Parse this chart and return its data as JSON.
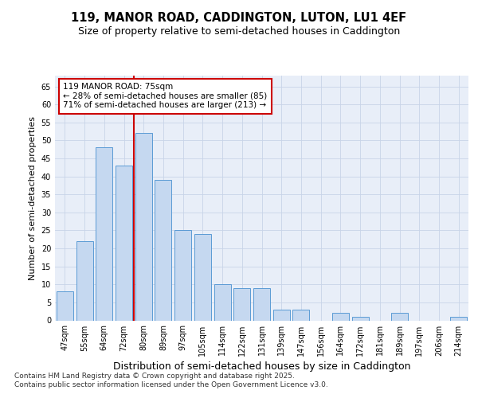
{
  "title_line1": "119, MANOR ROAD, CADDINGTON, LUTON, LU1 4EF",
  "title_line2": "Size of property relative to semi-detached houses in Caddington",
  "xlabel": "Distribution of semi-detached houses by size in Caddington",
  "ylabel": "Number of semi-detached properties",
  "categories": [
    "47sqm",
    "55sqm",
    "64sqm",
    "72sqm",
    "80sqm",
    "89sqm",
    "97sqm",
    "105sqm",
    "114sqm",
    "122sqm",
    "131sqm",
    "139sqm",
    "147sqm",
    "156sqm",
    "164sqm",
    "172sqm",
    "181sqm",
    "189sqm",
    "197sqm",
    "206sqm",
    "214sqm"
  ],
  "values": [
    8,
    22,
    48,
    43,
    52,
    39,
    25,
    24,
    10,
    9,
    9,
    3,
    3,
    0,
    2,
    1,
    0,
    2,
    0,
    0,
    1
  ],
  "bar_color": "#c5d8f0",
  "bar_edge_color": "#5b9bd5",
  "red_line_x": 3.5,
  "red_line_color": "#cc0000",
  "annotation_text": "119 MANOR ROAD: 75sqm\n← 28% of semi-detached houses are smaller (85)\n71% of semi-detached houses are larger (213) →",
  "annotation_box_color": "#ffffff",
  "annotation_box_edge_color": "#cc0000",
  "ylim": [
    0,
    68
  ],
  "yticks": [
    0,
    5,
    10,
    15,
    20,
    25,
    30,
    35,
    40,
    45,
    50,
    55,
    60,
    65
  ],
  "grid_color": "#c8d4e8",
  "background_color": "#e8eef8",
  "footer_text": "Contains HM Land Registry data © Crown copyright and database right 2025.\nContains public sector information licensed under the Open Government Licence v3.0.",
  "title_fontsize": 10.5,
  "subtitle_fontsize": 9,
  "tick_fontsize": 7,
  "ylabel_fontsize": 8,
  "xlabel_fontsize": 9,
  "annotation_fontsize": 7.5,
  "footer_fontsize": 6.5
}
